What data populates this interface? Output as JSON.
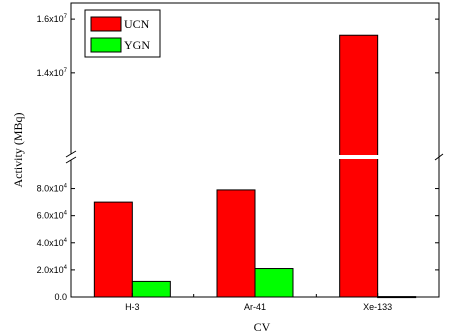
{
  "chart_data": {
    "type": "bar",
    "title": "",
    "xlabel": "CV",
    "ylabel": "Activity (MBq)",
    "categories": [
      "H-3",
      "Ar-41",
      "Xe-133"
    ],
    "series": [
      {
        "name": "UCN",
        "color": "#ff0000",
        "values": [
          70000,
          79000,
          15400000
        ]
      },
      {
        "name": "YGN",
        "color": "#00ff00",
        "values": [
          11500,
          21000,
          300
        ]
      }
    ],
    "axis_break": {
      "lower_range": [
        0,
        90000
      ],
      "upper_range": [
        11500000,
        16600000
      ]
    },
    "y_ticks_lower": [
      {
        "value": 0,
        "label": "0.0",
        "exp": ""
      },
      {
        "value": 20000,
        "label": "2.0x10",
        "exp": "4"
      },
      {
        "value": 40000,
        "label": "4.0x10",
        "exp": "4"
      },
      {
        "value": 60000,
        "label": "6.0x10",
        "exp": "4"
      },
      {
        "value": 80000,
        "label": "8.0x10",
        "exp": "4"
      }
    ],
    "y_ticks_upper": [
      {
        "value": 14000000,
        "label": "1.4x10",
        "exp": "7"
      },
      {
        "value": 16000000,
        "label": "1.6x10",
        "exp": "7"
      }
    ],
    "legend_position": "top-left",
    "grid": false
  }
}
